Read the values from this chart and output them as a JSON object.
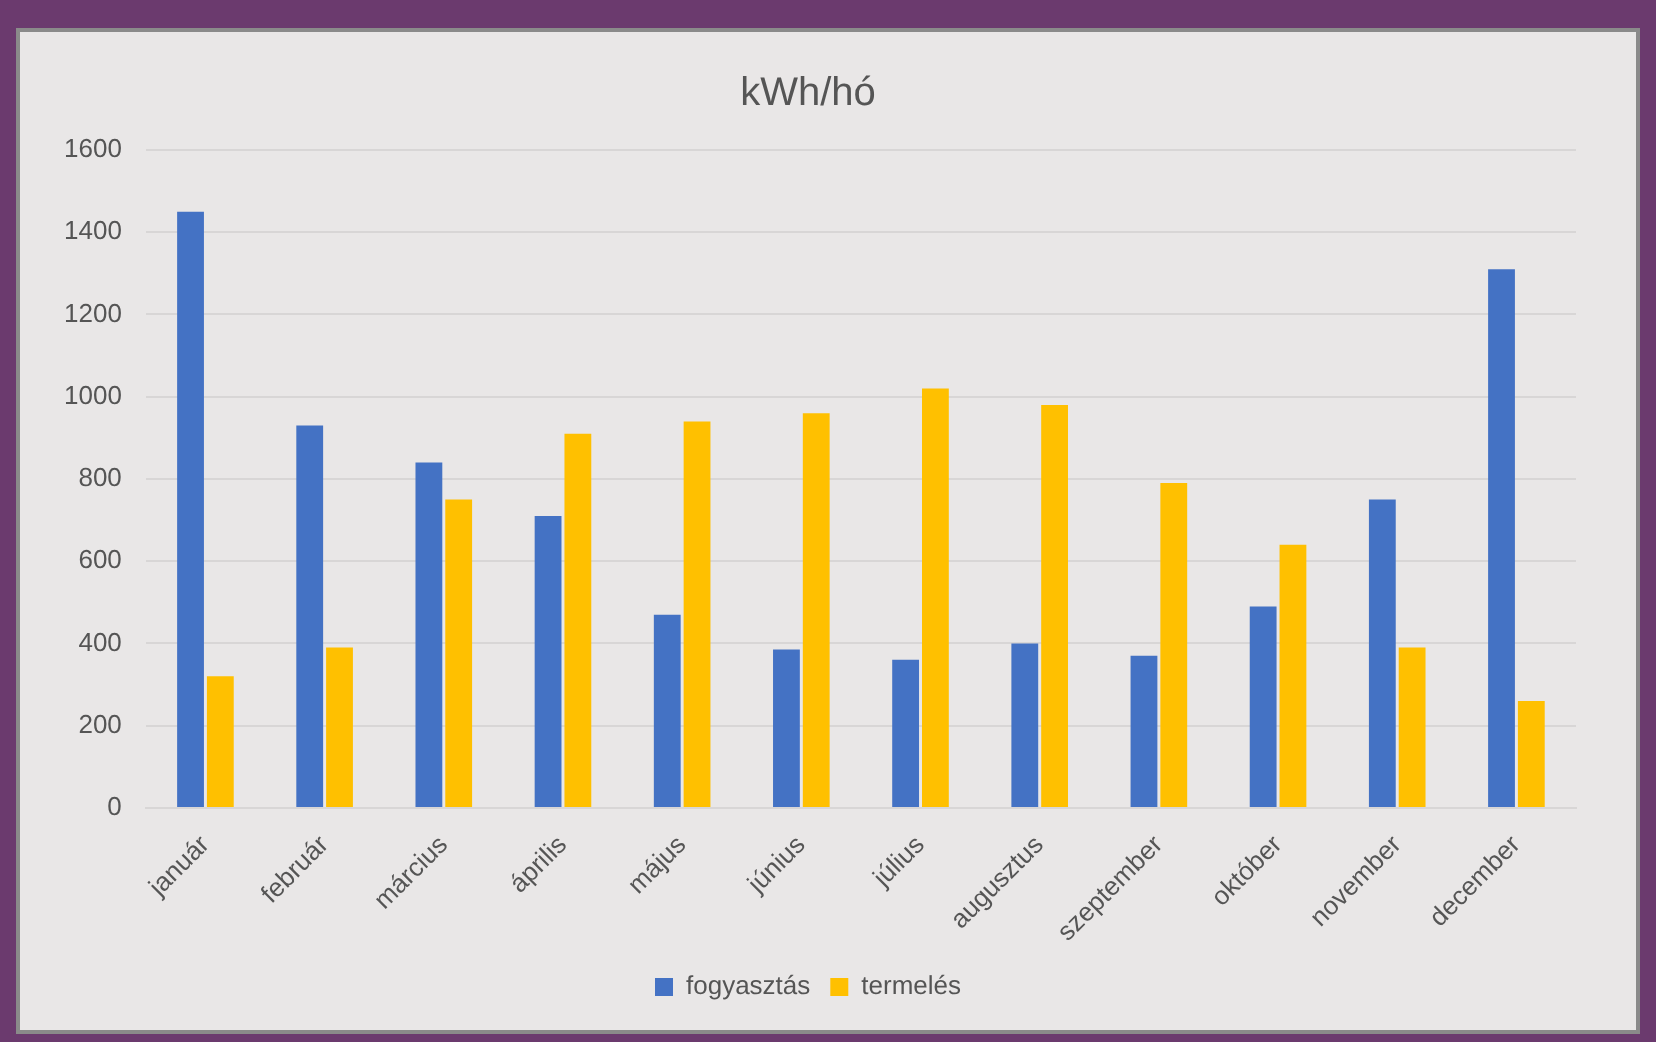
{
  "chart_data": {
    "type": "bar",
    "title": "kWh/hó",
    "categories": [
      "január",
      "február",
      "március",
      "április",
      "május",
      "június",
      "július",
      "augusztus",
      "szeptember",
      "október",
      "november",
      "december"
    ],
    "series": [
      {
        "name": "fogyasztás",
        "color": "#4472c4",
        "values": [
          1450,
          930,
          840,
          710,
          470,
          385,
          360,
          400,
          370,
          490,
          750,
          1310
        ]
      },
      {
        "name": "termelés",
        "color": "#ffc000",
        "values": [
          320,
          390,
          750,
          910,
          940,
          960,
          1020,
          980,
          790,
          640,
          390,
          260
        ]
      }
    ],
    "ylim": [
      0,
      1600
    ],
    "yticks": [
      0,
      200,
      400,
      600,
      800,
      1000,
      1200,
      1400,
      1600
    ],
    "grid": "y",
    "legend": "bottom"
  }
}
